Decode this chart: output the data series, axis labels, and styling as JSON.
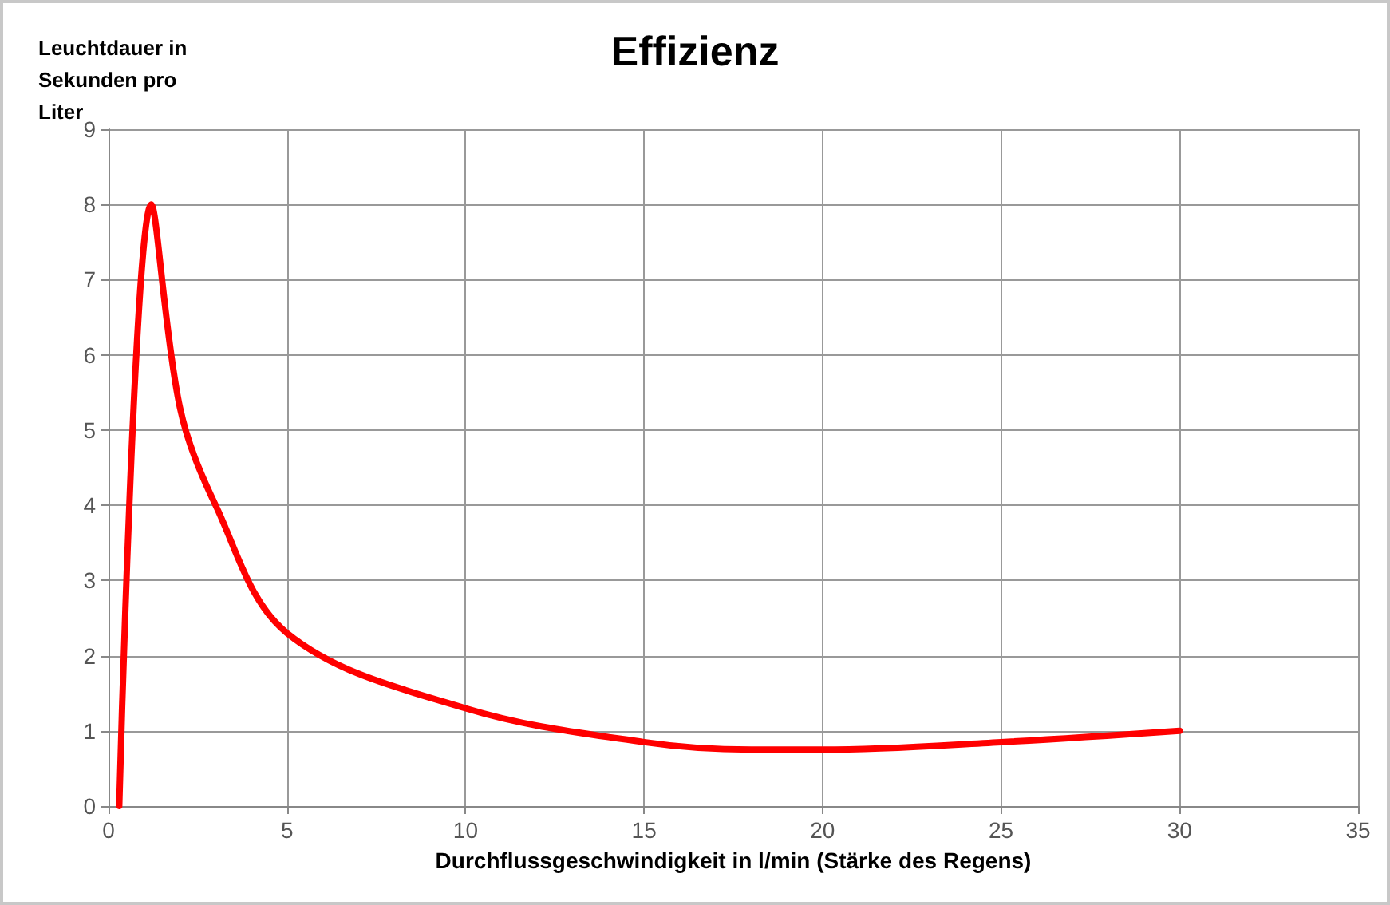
{
  "chart_data": {
    "type": "line",
    "title": "Effizienz",
    "xlabel": "Durchflussgeschwindigkeit in l/min (Stärke des Regens)",
    "ylabel": "Leuchtdauer in Sekunden pro Liter",
    "series": [
      {
        "color": "#ff0000",
        "x": [
          0.3,
          1.2,
          2,
          3,
          5,
          10,
          15,
          18,
          20,
          25,
          30
        ],
        "values": [
          0,
          8,
          5.3,
          4,
          2.3,
          1.3,
          0.85,
          0.75,
          0.75,
          0.85,
          1
        ]
      }
    ],
    "xlim": [
      0,
      35
    ],
    "xticks": [
      0,
      5,
      10,
      15,
      20,
      25,
      30,
      35
    ],
    "ylim": [
      0,
      9
    ],
    "yticks": [
      0,
      1,
      2,
      3,
      4,
      5,
      6,
      7,
      8,
      9
    ],
    "grid": true,
    "marker": "none",
    "line_style": "solid"
  }
}
